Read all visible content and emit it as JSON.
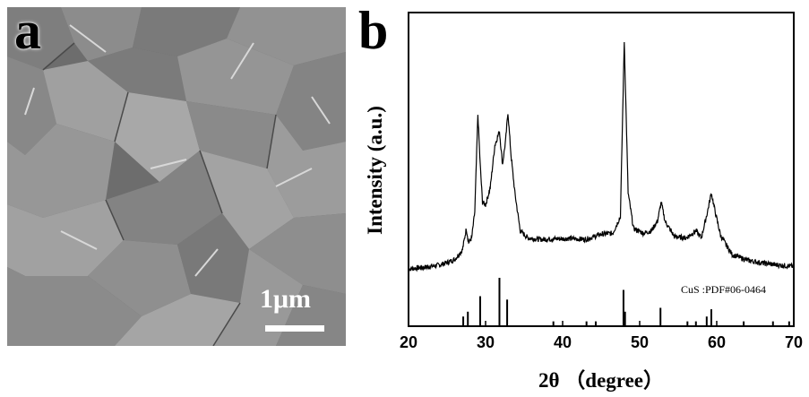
{
  "figure": {
    "panel_a_label": "a",
    "panel_b_label": "b",
    "scale_bar_label": "1μm"
  },
  "chart_data": {
    "type": "line",
    "xlabel": "2θ （degree）",
    "ylabel": "Intensity (a.u.)",
    "xlim": [
      20,
      70
    ],
    "xticks": [
      20,
      30,
      40,
      50,
      60,
      70
    ],
    "grid": false,
    "reference_label": "CuS :PDF#06-0464",
    "series": [
      {
        "x": [
          20,
          22,
          24,
          25,
          26,
          27,
          27.5,
          27.8,
          28.2,
          28.6,
          29.0,
          29.3,
          29.6,
          30.0,
          30.6,
          31.2,
          31.8,
          32.2,
          32.6,
          32.9,
          33.3,
          33.8,
          34.5,
          35.5,
          37,
          39,
          41,
          43,
          45,
          46.5,
          47.5,
          48.0,
          48.5,
          49.2,
          50.5,
          51.5,
          52.3,
          52.8,
          53.3,
          54.5,
          56,
          57.3,
          58,
          58.8,
          59.3,
          59.8,
          60.5,
          62,
          64,
          66,
          68,
          70
        ],
        "y": [
          0,
          0.3,
          0.8,
          1.3,
          2.0,
          4.0,
          8.5,
          5.5,
          6.5,
          12.0,
          32.5,
          22.0,
          14.0,
          13.5,
          17.0,
          26.0,
          29.0,
          22.0,
          27.0,
          33.0,
          24.0,
          16.0,
          8.0,
          6.5,
          6.2,
          6.3,
          6.4,
          6.2,
          7.3,
          7.5,
          11.0,
          48.0,
          16.0,
          8.5,
          7.5,
          8.0,
          10.0,
          14.0,
          10.0,
          6.8,
          6.5,
          8.0,
          6.5,
          12.0,
          16.0,
          12.0,
          7.0,
          3.0,
          1.8,
          1.2,
          0.8,
          0.5
        ]
      }
    ],
    "reference_peaks": [
      {
        "x": 27.1,
        "h": 0.2
      },
      {
        "x": 27.7,
        "h": 0.3
      },
      {
        "x": 29.3,
        "h": 0.62
      },
      {
        "x": 31.8,
        "h": 1.0
      },
      {
        "x": 32.8,
        "h": 0.55
      },
      {
        "x": 38.8,
        "h": 0.1
      },
      {
        "x": 43.1,
        "h": 0.1
      },
      {
        "x": 44.3,
        "h": 0.1
      },
      {
        "x": 47.9,
        "h": 0.75
      },
      {
        "x": 48.1,
        "h": 0.3
      },
      {
        "x": 52.7,
        "h": 0.38
      },
      {
        "x": 56.2,
        "h": 0.1
      },
      {
        "x": 57.3,
        "h": 0.1
      },
      {
        "x": 58.7,
        "h": 0.2
      },
      {
        "x": 59.3,
        "h": 0.35
      },
      {
        "x": 63.5,
        "h": 0.1
      },
      {
        "x": 67.3,
        "h": 0.1
      },
      {
        "x": 69.4,
        "h": 0.1
      }
    ]
  }
}
